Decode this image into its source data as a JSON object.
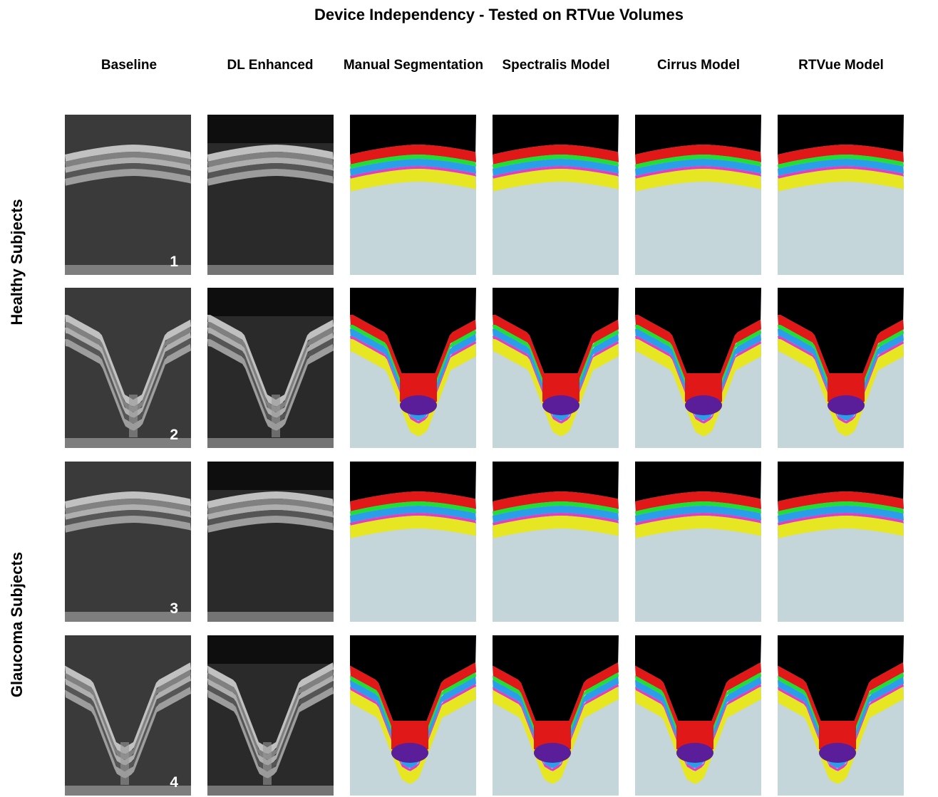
{
  "figure": {
    "title": "Device Independency - Tested on RTVue  Volumes",
    "columns": [
      "Baseline",
      "DL Enhanced",
      "Manual Segmentation",
      "Spectralis Model",
      "Cirrus Model",
      "RTVue Model"
    ],
    "row_groups": [
      "Healthy Subjects",
      "Glaucoma Subjects"
    ],
    "row_numbers": [
      "1",
      "2",
      "3",
      "4"
    ]
  },
  "legend_colors": {
    "background_black": "#000000",
    "rnfl_red": "#e01818",
    "green_layer": "#22dd33",
    "blue_layer": "#2a9ee8",
    "magenta_layer": "#e040c0",
    "yellow_layer": "#e6e622",
    "tissue_bg": "#c5d6da",
    "lamina_purple": "#5a1e9a"
  }
}
